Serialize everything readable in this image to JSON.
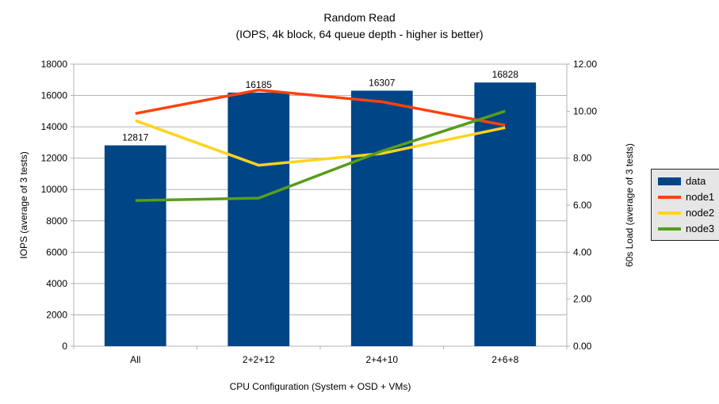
{
  "chart_data": {
    "type": "bar",
    "title": "Random Read",
    "subtitle": "(IOPS, 4k block, 64 queue depth - higher is better)",
    "categories": [
      "All",
      "2+2+12",
      "2+4+10",
      "2+6+8"
    ],
    "series": [
      {
        "name": "data",
        "type": "bar",
        "axis": "left",
        "color": "#004586",
        "values": [
          12817,
          16185,
          16307,
          16828
        ]
      },
      {
        "name": "node1",
        "type": "line",
        "axis": "right",
        "color": "#FF420E",
        "values": [
          9.9,
          10.9,
          10.4,
          9.4
        ]
      },
      {
        "name": "node2",
        "type": "line",
        "axis": "right",
        "color": "#FFD320",
        "values": [
          9.6,
          7.7,
          8.2,
          9.3
        ]
      },
      {
        "name": "node3",
        "type": "line",
        "axis": "right",
        "color": "#579D1C",
        "values": [
          6.2,
          6.3,
          8.3,
          10.0
        ]
      }
    ],
    "xlabel": "CPU Configuration (System + OSD + VMs)",
    "ylabel_left": "IOPS (average of 3 tests)",
    "ylabel_right": "60s Load (average of 3 tests)",
    "left_axis": {
      "min": 0,
      "max": 18000,
      "step": 2000
    },
    "right_axis": {
      "min": 0,
      "max": 12,
      "step": 2,
      "decimals": 2
    },
    "grid": "horizontal",
    "legend_position": "right",
    "colors": {
      "grid_line": "#b3b3b3",
      "text": "#000000",
      "legend_bg": "#e6e6e6",
      "background": "#ffffff"
    }
  }
}
